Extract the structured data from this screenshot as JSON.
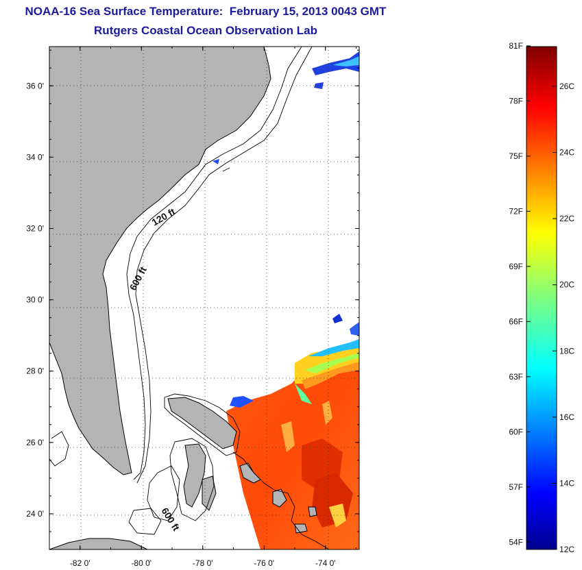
{
  "header": {
    "title": "NOAA-16 Sea Surface Temperature:  February 15, 2013 0043 GMT",
    "subtitle": "Rutgers Coastal Ocean Observation Lab"
  },
  "map": {
    "lon_range": [
      -83.0,
      -72.9
    ],
    "lat_range": [
      23.0,
      37.1
    ],
    "x_ticks": [
      {
        "value": -82,
        "label": "-82 0'"
      },
      {
        "value": -80,
        "label": "-80 0'"
      },
      {
        "value": -78,
        "label": "-78 0'"
      },
      {
        "value": -76,
        "label": "-76 0'"
      },
      {
        "value": -74,
        "label": "-74 0'"
      }
    ],
    "y_ticks": [
      {
        "value": 36,
        "label": "36 0'"
      },
      {
        "value": 34,
        "label": "34 0'"
      },
      {
        "value": 32,
        "label": "32 0'"
      },
      {
        "value": 30,
        "label": "30 0'"
      },
      {
        "value": 28,
        "label": "28 0'"
      },
      {
        "value": 26,
        "label": "26 0'"
      },
      {
        "value": 24,
        "label": "24 0'"
      }
    ],
    "contour_labels": [
      "120 ft",
      "600 ft",
      "600 ft"
    ],
    "grid": "dotted",
    "land_color": "#b4b4b4"
  },
  "colorbar": {
    "min_c": 12,
    "max_c": 27.2,
    "fahrenheit_labels": [
      "81F",
      "78F",
      "75F",
      "72F",
      "69F",
      "66F",
      "63F",
      "60F",
      "57F",
      "54F"
    ],
    "celsius_labels": [
      "26C",
      "24C",
      "22C",
      "20C",
      "18C",
      "16C",
      "14C",
      "12C"
    ],
    "colormap": "jet"
  }
}
